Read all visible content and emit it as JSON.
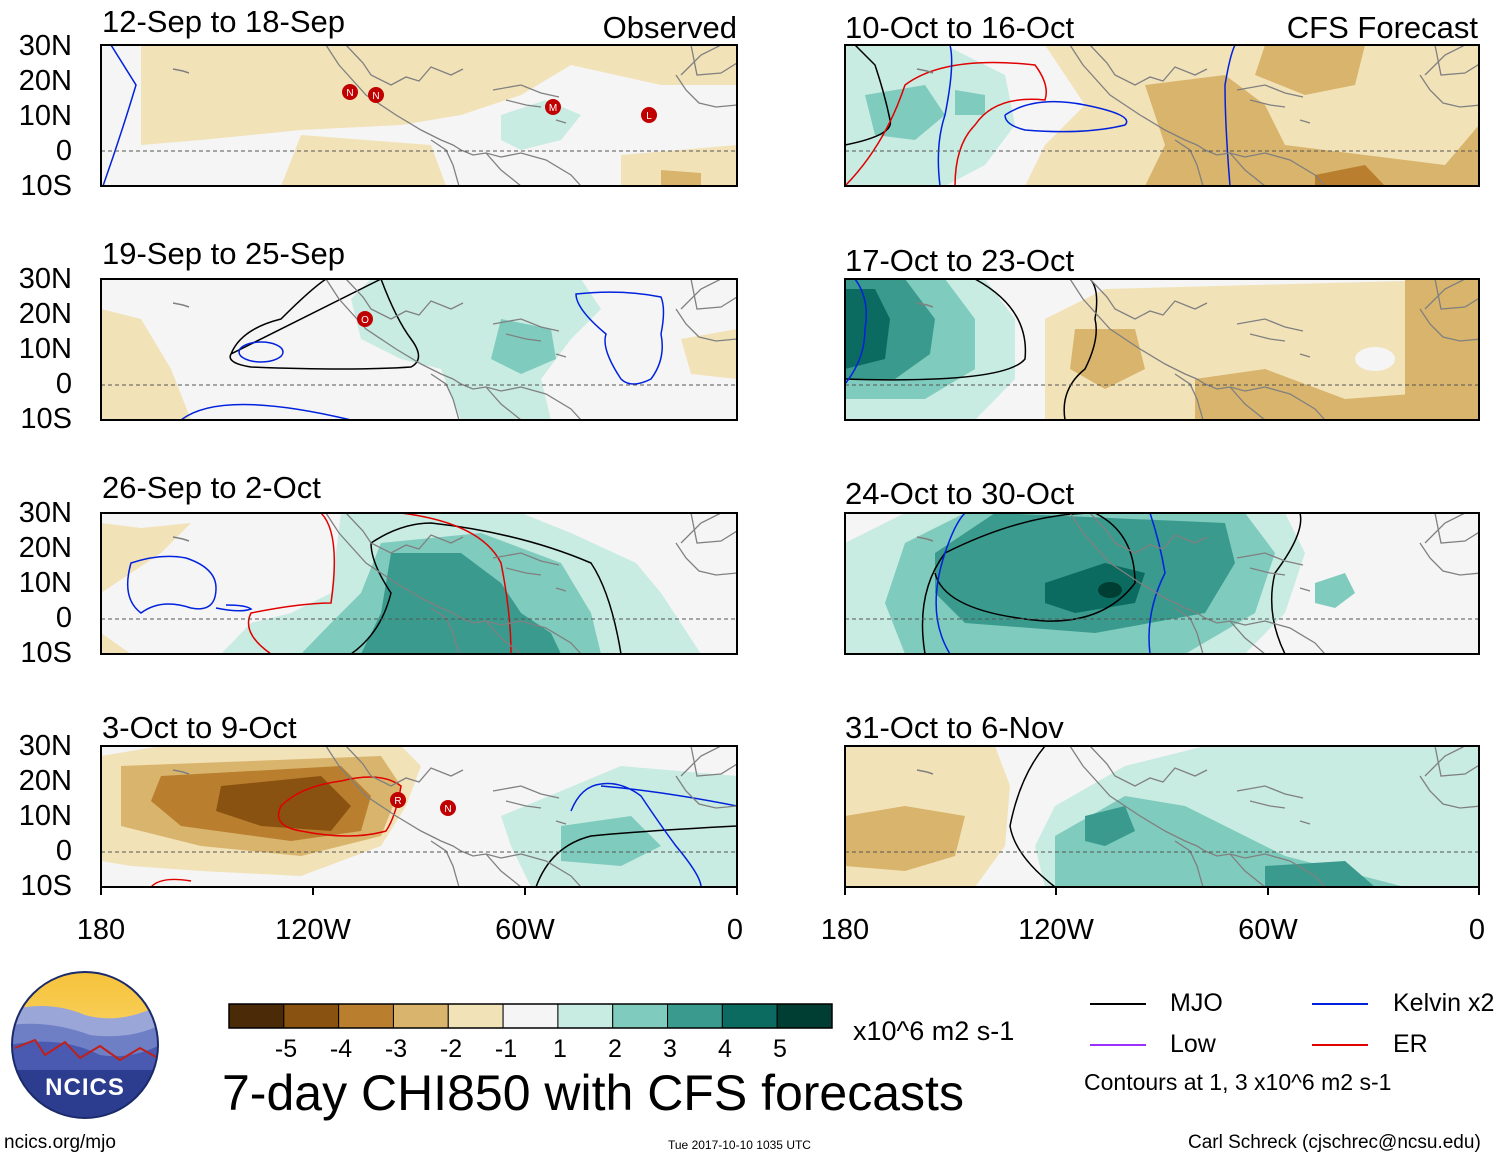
{
  "left_column_tag": "Observed",
  "right_column_tag": "CFS Forecast",
  "panels": [
    {
      "title": "12-Sep to 18-Sep",
      "storm_markers": [
        "N",
        "N",
        "M",
        "L"
      ]
    },
    {
      "title": "19-Sep to 25-Sep",
      "storm_markers": [
        "O"
      ]
    },
    {
      "title": "26-Sep to 2-Oct",
      "storm_markers": []
    },
    {
      "title": "3-Oct to 9-Oct",
      "storm_markers": [
        "R",
        "N"
      ]
    },
    {
      "title": "10-Oct to 16-Oct",
      "storm_markers": []
    },
    {
      "title": "17-Oct to 23-Oct",
      "storm_markers": []
    },
    {
      "title": "24-Oct to 30-Oct",
      "storm_markers": []
    },
    {
      "title": "31-Oct to 6-Nov",
      "storm_markers": []
    }
  ],
  "y_axis_labels": [
    "30N",
    "20N",
    "10N",
    "0",
    "10S"
  ],
  "x_axis_labels": [
    "180",
    "120W",
    "60W",
    "0"
  ],
  "colorbar": {
    "labels": [
      "-5",
      "-4",
      "-3",
      "-2",
      "-1",
      "1",
      "2",
      "3",
      "4",
      "5"
    ],
    "colors": [
      "#4a2a07",
      "#8a5210",
      "#b97f2f",
      "#d9b46c",
      "#f2e2b8",
      "#f5f5f5",
      "#c8ebe2",
      "#7fcbbd",
      "#3a9a8e",
      "#0b6b60",
      "#003d33"
    ],
    "units": "x10^6 m2 s-1"
  },
  "main_title": "7-day CHI850 with CFS forecasts",
  "legend": {
    "items": [
      {
        "label": "MJO",
        "color": "#000000"
      },
      {
        "label": "Kelvin x2",
        "color": "#0022dd"
      },
      {
        "label": "Low",
        "color": "#9b30ff"
      },
      {
        "label": "ER",
        "color": "#e00000"
      }
    ],
    "note": "Contours at 1, 3 x10^6 m2 s-1"
  },
  "logo_text": "NCICS",
  "footer": {
    "left": "ncics.org/mjo",
    "center": "Tue 2017-10-10 1035 UTC",
    "right": "Carl Schreck (cjschrec@ncsu.edu)"
  }
}
